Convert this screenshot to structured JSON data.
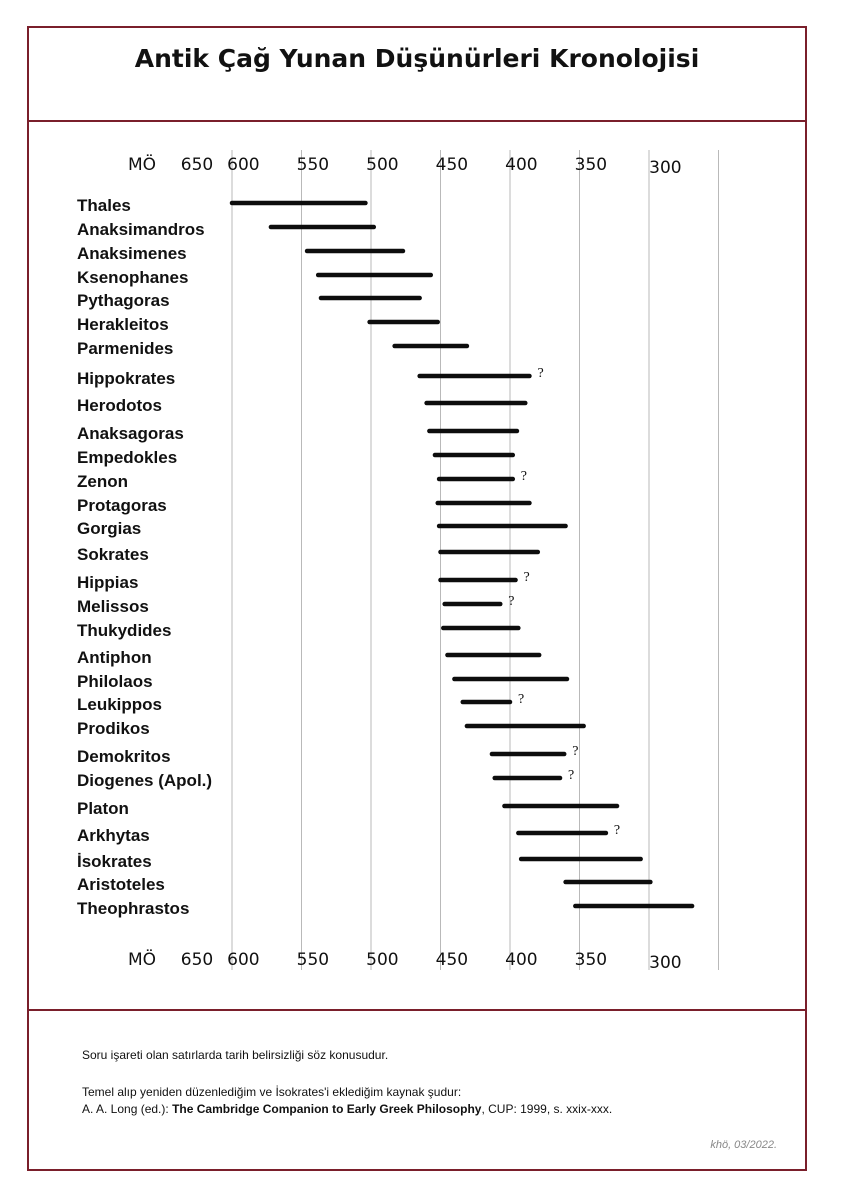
{
  "title": "Antik Çağ Yunan Düşünürleri Kronolojisi",
  "chart_data": {
    "type": "timeline",
    "title": "Antik Çağ Yunan Düşünürleri Kronolojisi",
    "axis_prefix": "MÖ",
    "x_reversed": true,
    "xlim": [
      676,
      285
    ],
    "ticks": [
      650,
      600,
      550,
      500,
      450,
      400,
      350,
      300
    ],
    "gridlines": [
      624,
      574,
      524,
      474,
      424,
      374,
      324,
      274
    ],
    "people": [
      {
        "name": "Thales",
        "start": 624,
        "end": 528,
        "uncertain": false
      },
      {
        "name": "Anaksimandros",
        "start": 596,
        "end": 522,
        "uncertain": false
      },
      {
        "name": "Anaksimenes",
        "start": 570,
        "end": 501,
        "uncertain": false
      },
      {
        "name": "Ksenophanes",
        "start": 562,
        "end": 481,
        "uncertain": false
      },
      {
        "name": "Pythagoras",
        "start": 560,
        "end": 489,
        "uncertain": false
      },
      {
        "name": "Herakleitos",
        "start": 525,
        "end": 476,
        "uncertain": false
      },
      {
        "name": "Parmenides",
        "start": 507,
        "end": 455,
        "uncertain": false
      },
      {
        "name": "Hippokrates",
        "start": 489,
        "end": 410,
        "uncertain": true
      },
      {
        "name": "Herodotos",
        "start": 484,
        "end": 413,
        "uncertain": false
      },
      {
        "name": "Anaksagoras",
        "start": 482,
        "end": 419,
        "uncertain": false
      },
      {
        "name": "Empedokles",
        "start": 478,
        "end": 422,
        "uncertain": false
      },
      {
        "name": "Zenon",
        "start": 475,
        "end": 422,
        "uncertain": true
      },
      {
        "name": "Protagoras",
        "start": 476,
        "end": 410,
        "uncertain": false
      },
      {
        "name": "Gorgias",
        "start": 475,
        "end": 384,
        "uncertain": false
      },
      {
        "name": "Sokrates",
        "start": 474,
        "end": 404,
        "uncertain": false
      },
      {
        "name": "Hippias",
        "start": 474,
        "end": 420,
        "uncertain": true
      },
      {
        "name": "Melissos",
        "start": 471,
        "end": 431,
        "uncertain": true
      },
      {
        "name": "Thukydides",
        "start": 472,
        "end": 418,
        "uncertain": false
      },
      {
        "name": "Antiphon",
        "start": 469,
        "end": 403,
        "uncertain": false
      },
      {
        "name": "Philolaos",
        "start": 464,
        "end": 383,
        "uncertain": false
      },
      {
        "name": "Leukippos",
        "start": 458,
        "end": 424,
        "uncertain": true
      },
      {
        "name": "Prodikos",
        "start": 455,
        "end": 371,
        "uncertain": false
      },
      {
        "name": "Demokritos",
        "start": 437,
        "end": 385,
        "uncertain": true
      },
      {
        "name": "Diogenes (Apol.)",
        "start": 435,
        "end": 388,
        "uncertain": true
      },
      {
        "name": "Platon",
        "start": 428,
        "end": 347,
        "uncertain": false
      },
      {
        "name": "Arkhytas",
        "start": 418,
        "end": 355,
        "uncertain": true
      },
      {
        "name": "İsokrates",
        "start": 416,
        "end": 330,
        "uncertain": false
      },
      {
        "name": "Aristoteles",
        "start": 384,
        "end": 323,
        "uncertain": false
      },
      {
        "name": "Theophrastos",
        "start": 377,
        "end": 293,
        "uncertain": false
      }
    ],
    "uncertain_marker": "?"
  },
  "notes": {
    "uncertainty": "Soru işareti olan satırlarda tarih belirsizliği söz konusudur.",
    "source_intro": "Temel alıp yeniden düzenlediğim ve İsokrates'i eklediğim kaynak şudur:",
    "source_author": "A. A. Long (ed.): ",
    "source_title": "The Cambridge Companion to Early Greek Philosophy",
    "source_rest": ", CUP: 1999, s. xxix-xxx."
  },
  "signature": "khö, 03/2022."
}
